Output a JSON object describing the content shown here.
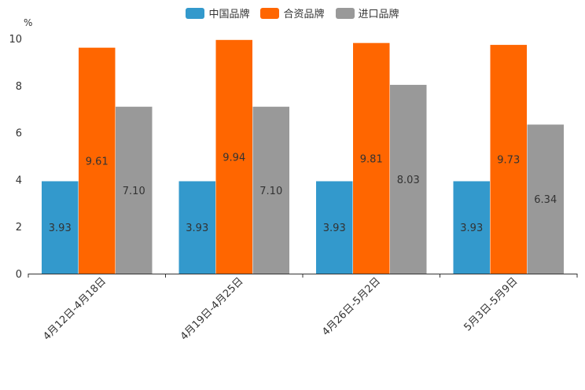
{
  "chart_data": {
    "type": "bar",
    "ylabel": "%",
    "ylim": [
      0,
      10
    ],
    "yticks": [
      0,
      2,
      4,
      6,
      8,
      10
    ],
    "categories": [
      "4月12日-4月18日",
      "4月19日-4月25日",
      "4月26日-5月2日",
      "5月3日-5月9日"
    ],
    "series": [
      {
        "name": "中国品牌",
        "color": "#3399cc",
        "values": [
          3.93,
          3.93,
          3.93,
          3.93
        ],
        "labels": [
          "3.93",
          "3.93",
          "3.93",
          "3.93"
        ]
      },
      {
        "name": "合资品牌",
        "color": "#ff6600",
        "values": [
          9.61,
          9.94,
          9.81,
          9.73
        ],
        "labels": [
          "9.61",
          "9.94",
          "9.81",
          "9.73"
        ]
      },
      {
        "name": "进口品牌",
        "color": "#999999",
        "values": [
          7.1,
          7.1,
          8.03,
          6.34
        ],
        "labels": [
          "7.10",
          "7.10",
          "8.03",
          "6.34"
        ]
      }
    ],
    "legend_position": "top-center"
  }
}
